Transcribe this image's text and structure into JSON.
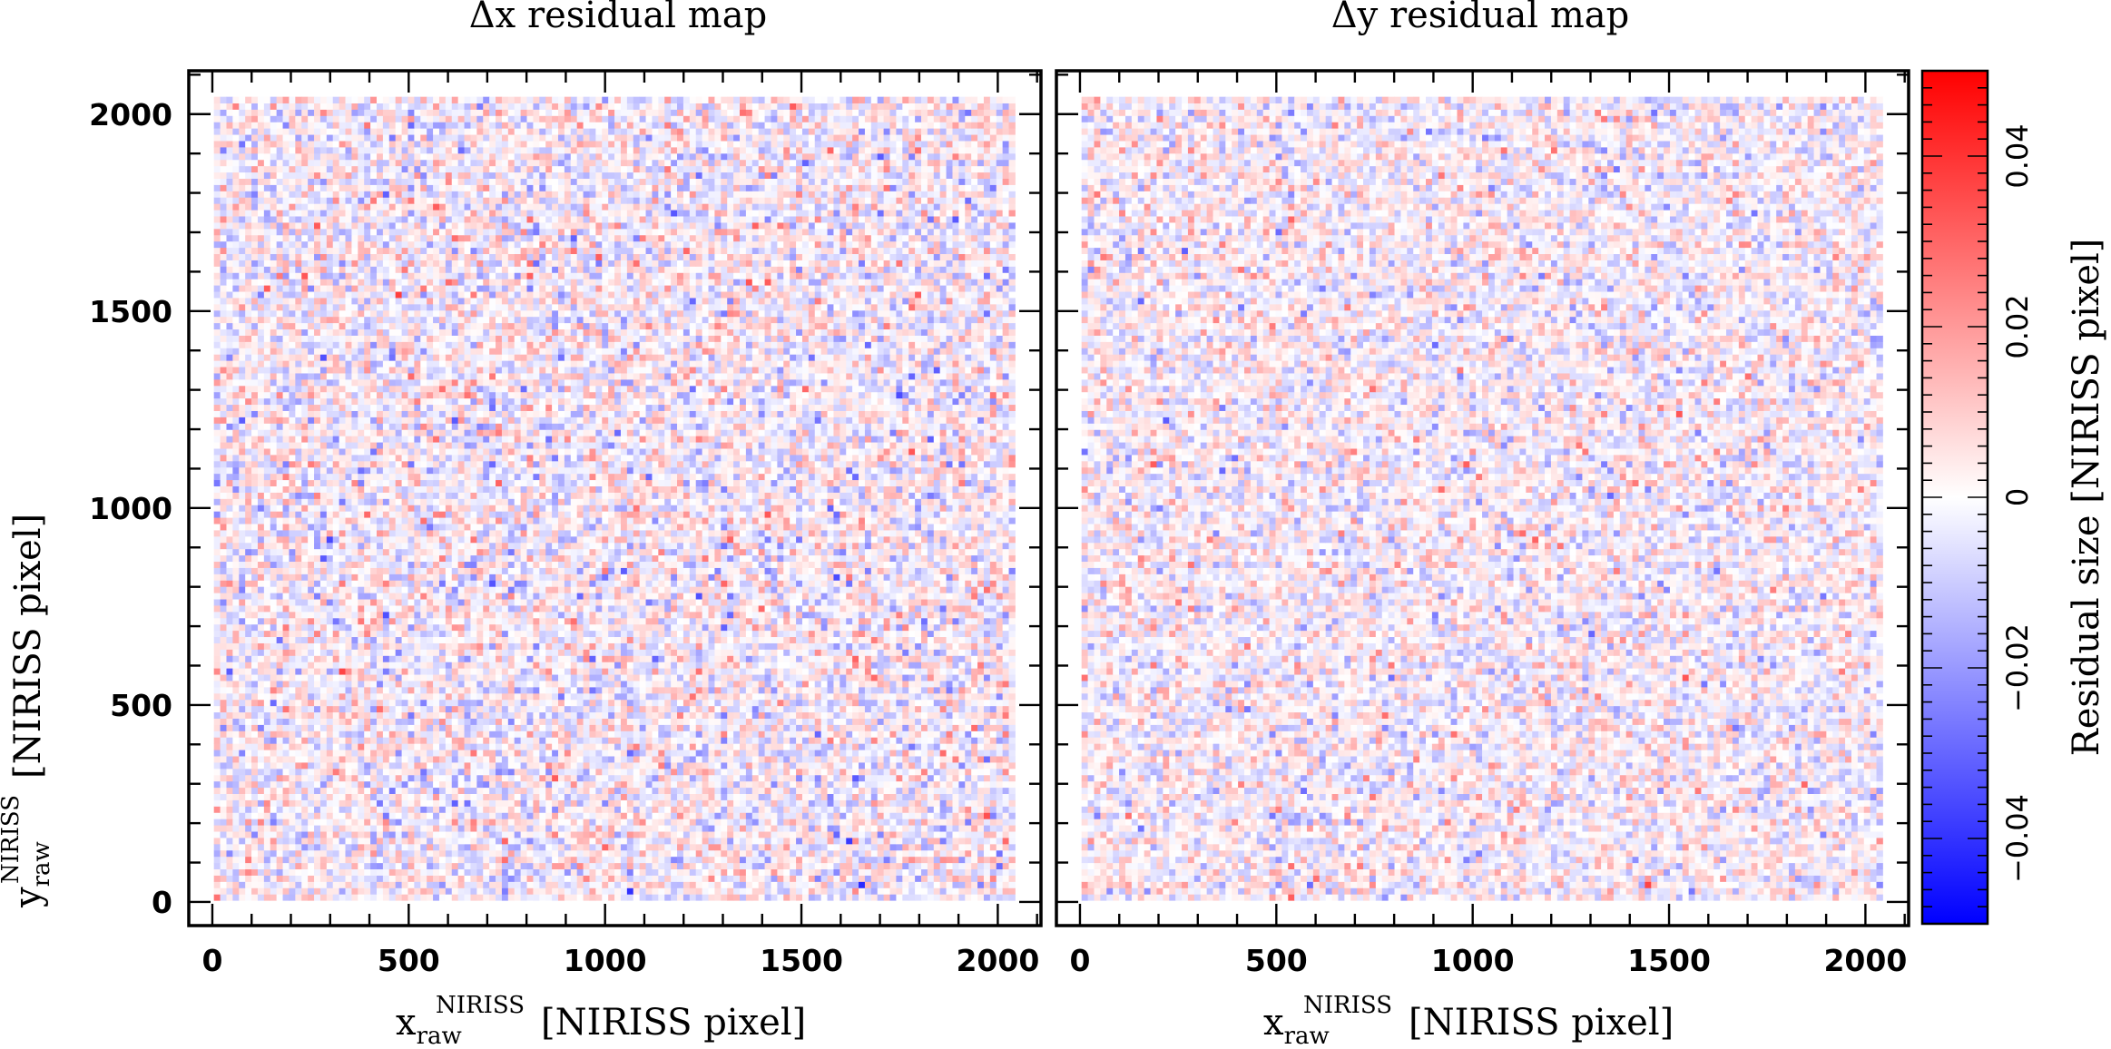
{
  "chart_data": [
    {
      "type": "heatmap",
      "title": "Δx residual map",
      "xlabel_main": "x",
      "xlabel_sub": "raw",
      "xlabel_sup": "NIRISS",
      "xlabel_unit": "[NIRISS pixel]",
      "ylabel_main": "y",
      "ylabel_sub": "raw",
      "ylabel_sup": "NIRISS",
      "ylabel_unit": "[NIRISS pixel]",
      "xlim": [
        -60,
        2110
      ],
      "ylim": [
        -60,
        2110
      ],
      "xticks": [
        "0",
        "500",
        "1000",
        "1500",
        "2000"
      ],
      "yticks": [
        "0",
        "500",
        "1000",
        "1500",
        "2000"
      ],
      "x_tick_values": [
        0,
        500,
        1000,
        1500,
        2000
      ],
      "y_tick_values": [
        0,
        500,
        1000,
        1500,
        2000
      ],
      "grid": false,
      "data_extent": [
        4,
        2044
      ],
      "grid_cells": 128,
      "value_spread": 0.01,
      "value_range": [
        -0.05,
        0.05
      ]
    },
    {
      "type": "heatmap",
      "title": "Δy residual map",
      "xlabel_main": "x",
      "xlabel_sub": "raw",
      "xlabel_sup": "NIRISS",
      "xlabel_unit": "[NIRISS pixel]",
      "xlim": [
        -60,
        2110
      ],
      "ylim": [
        -60,
        2110
      ],
      "xticks": [
        "0",
        "500",
        "1000",
        "1500",
        "2000"
      ],
      "x_tick_values": [
        0,
        500,
        1000,
        1500,
        2000
      ],
      "grid": false,
      "data_extent": [
        4,
        2044
      ],
      "grid_cells": 128,
      "value_spread": 0.009,
      "value_range": [
        -0.05,
        0.05
      ]
    }
  ],
  "colorbar": {
    "label": "Residual size [NIRISS pixel]",
    "range": [
      -0.05,
      0.05
    ],
    "ticks": [
      "−0.04",
      "−0.02",
      "0",
      "0.02",
      "0.04"
    ],
    "tick_values": [
      -0.04,
      -0.02,
      0,
      0.02,
      0.04
    ],
    "colors": {
      "low": "#0000ff",
      "mid": "#ffffff",
      "high": "#ff0000"
    }
  }
}
